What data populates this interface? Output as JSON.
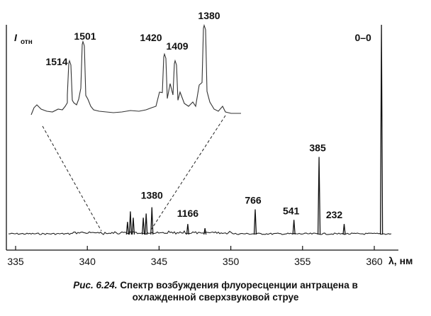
{
  "chart_data": {
    "type": "line",
    "xlabel": "λ, нм",
    "ylabel": "I",
    "ylabel_sub": "отн",
    "xlim": [
      334.5,
      362
    ],
    "x_ticks": [
      335,
      340,
      345,
      350,
      355,
      360
    ],
    "grid": false,
    "main_peaks": [
      {
        "x": 342.8,
        "h": 0.06
      },
      {
        "x": 343.0,
        "h": 0.11
      },
      {
        "x": 343.2,
        "h": 0.08
      },
      {
        "x": 343.9,
        "h": 0.08
      },
      {
        "x": 344.1,
        "h": 0.1
      },
      {
        "x": 344.5,
        "h": 0.13,
        "label": "1380"
      },
      {
        "x": 347.0,
        "h": 0.05,
        "label": "1166"
      },
      {
        "x": 348.2,
        "h": 0.03
      },
      {
        "x": 351.7,
        "h": 0.12,
        "label": "766"
      },
      {
        "x": 354.4,
        "h": 0.07,
        "label": "541"
      },
      {
        "x": 356.15,
        "h": 0.37,
        "label": "385"
      },
      {
        "x": 357.9,
        "h": 0.05,
        "label": "232"
      },
      {
        "x": 360.5,
        "h": 1.0,
        "label": "0–0"
      }
    ],
    "inset_peaks": [
      {
        "label": "1514",
        "h": 0.55
      },
      {
        "label": "1501",
        "h": 0.75
      },
      {
        "label": "1420",
        "h": 0.62
      },
      {
        "label": "1409",
        "h": 0.55
      },
      {
        "label": "1380",
        "h": 0.92
      }
    ]
  },
  "caption": {
    "fig_num": "Рис. 6.24.",
    "line1": "Спектр возбуждения флуоресценции антрацена в",
    "line2": "охлажденной сверхзвуковой струе"
  }
}
